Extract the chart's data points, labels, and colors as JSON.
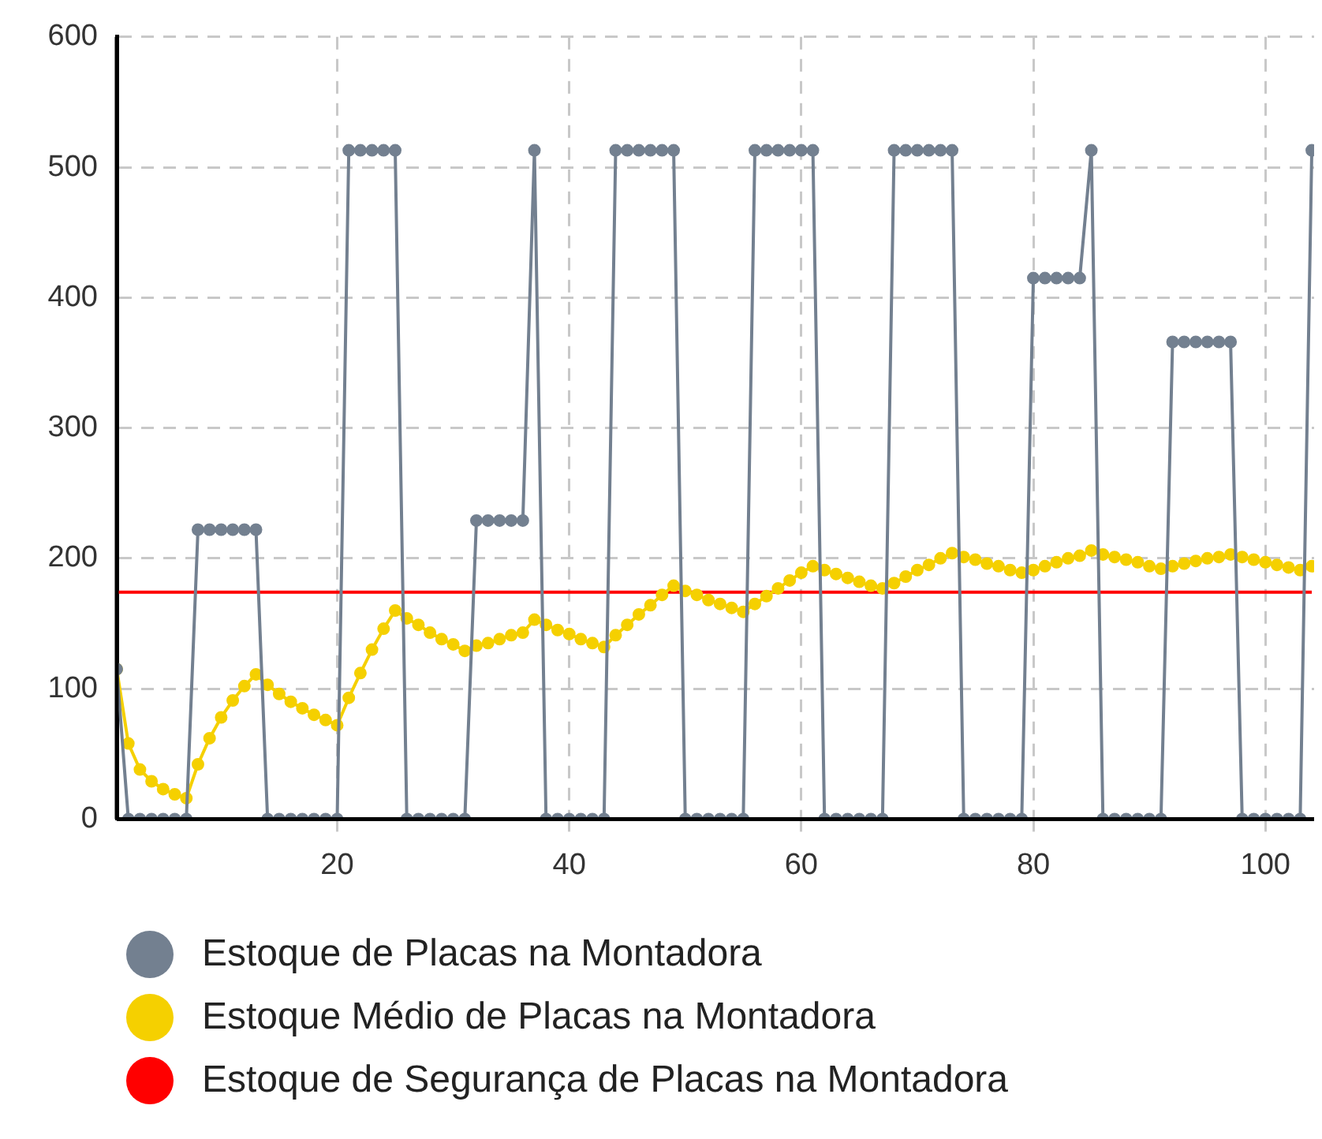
{
  "chart_data": {
    "type": "line",
    "x": [
      1,
      2,
      3,
      4,
      5,
      6,
      7,
      8,
      9,
      10,
      11,
      12,
      13,
      14,
      15,
      16,
      17,
      18,
      19,
      20,
      21,
      22,
      23,
      24,
      25,
      26,
      27,
      28,
      29,
      30,
      31,
      32,
      33,
      34,
      35,
      36,
      37,
      38,
      39,
      40,
      41,
      42,
      43,
      44,
      45,
      46,
      47,
      48,
      49,
      50,
      51,
      52,
      53,
      54,
      55,
      56,
      57,
      58,
      59,
      60,
      61,
      62,
      63,
      64,
      65,
      66,
      67,
      68,
      69,
      70,
      71,
      72,
      73,
      74,
      75,
      76,
      77,
      78,
      79,
      80,
      81,
      82,
      83,
      84,
      85,
      86,
      87,
      88,
      89,
      90,
      91,
      92,
      93,
      94,
      95,
      96,
      97,
      98,
      99,
      100,
      101,
      102,
      103,
      104
    ],
    "series": [
      {
        "name": "Estoque de Placas na Montadora",
        "color": "#738090",
        "marker": "circle",
        "values": [
          115,
          0,
          0,
          0,
          0,
          0,
          0,
          222,
          222,
          222,
          222,
          222,
          222,
          0,
          0,
          0,
          0,
          0,
          0,
          0,
          513,
          513,
          513,
          513,
          513,
          0,
          0,
          0,
          0,
          0,
          0,
          229,
          229,
          229,
          229,
          229,
          513,
          0,
          0,
          0,
          0,
          0,
          0,
          513,
          513,
          513,
          513,
          513,
          513,
          0,
          0,
          0,
          0,
          0,
          0,
          513,
          513,
          513,
          513,
          513,
          513,
          0,
          0,
          0,
          0,
          0,
          0,
          513,
          513,
          513,
          513,
          513,
          513,
          0,
          0,
          0,
          0,
          0,
          0,
          415,
          415,
          415,
          415,
          415,
          513,
          0,
          0,
          0,
          0,
          0,
          0,
          366,
          366,
          366,
          366,
          366,
          366,
          0,
          0,
          0,
          0,
          0,
          0,
          513
        ]
      },
      {
        "name": "Estoque Médio de Placas na Montadora",
        "color": "#f5d000",
        "marker": "circle",
        "values": [
          115,
          58,
          38,
          29,
          23,
          19,
          16,
          42,
          62,
          78,
          91,
          102,
          111,
          103,
          96,
          90,
          85,
          80,
          76,
          72,
          93,
          112,
          130,
          146,
          160,
          154,
          149,
          143,
          138,
          134,
          129,
          133,
          135,
          138,
          141,
          143,
          153,
          149,
          145,
          142,
          138,
          135,
          132,
          141,
          149,
          157,
          164,
          172,
          179,
          175,
          172,
          168,
          165,
          162,
          159,
          165,
          171,
          177,
          183,
          189,
          194,
          191,
          188,
          185,
          182,
          179,
          177,
          181,
          186,
          191,
          195,
          200,
          204,
          201,
          199,
          196,
          194,
          191,
          189,
          191,
          194,
          197,
          200,
          202,
          206,
          203,
          201,
          199,
          197,
          194,
          192,
          194,
          196,
          198,
          200,
          201,
          203,
          201,
          199,
          197,
          195,
          193,
          191,
          194
        ]
      },
      {
        "name": "Estoque de Segurança de Placas na Montadora",
        "color": "#ff0000",
        "marker": "none",
        "values": [
          174,
          174,
          174,
          174,
          174,
          174,
          174,
          174,
          174,
          174,
          174,
          174,
          174,
          174,
          174,
          174,
          174,
          174,
          174,
          174,
          174,
          174,
          174,
          174,
          174,
          174,
          174,
          174,
          174,
          174,
          174,
          174,
          174,
          174,
          174,
          174,
          174,
          174,
          174,
          174,
          174,
          174,
          174,
          174,
          174,
          174,
          174,
          174,
          174,
          174,
          174,
          174,
          174,
          174,
          174,
          174,
          174,
          174,
          174,
          174,
          174,
          174,
          174,
          174,
          174,
          174,
          174,
          174,
          174,
          174,
          174,
          174,
          174,
          174,
          174,
          174,
          174,
          174,
          174,
          174,
          174,
          174,
          174,
          174,
          174,
          174,
          174,
          174,
          174,
          174,
          174,
          174,
          174,
          174,
          174,
          174,
          174,
          174,
          174,
          174,
          174,
          174,
          174,
          174
        ]
      }
    ],
    "xlim": [
      1,
      104.2
    ],
    "xticks": [
      20,
      40,
      60,
      80,
      100
    ],
    "ylim": [
      0,
      600
    ],
    "yticks": [
      0,
      100,
      200,
      300,
      400,
      500,
      600
    ],
    "grid": true,
    "legend": "bottom"
  }
}
